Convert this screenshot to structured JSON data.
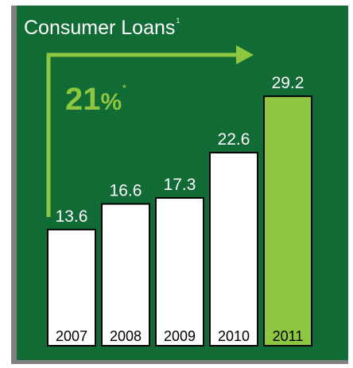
{
  "chart_data": {
    "type": "bar",
    "title": "Consumer Loans",
    "title_footnote": "1",
    "annotation": {
      "value": "21",
      "unit": "%",
      "footnote": "*"
    },
    "categories": [
      "2007",
      "2008",
      "2009",
      "2010",
      "2011"
    ],
    "values": [
      13.6,
      16.6,
      17.3,
      22.6,
      29.2
    ],
    "value_labels": [
      "13.6",
      "16.6",
      "17.3",
      "22.6",
      "29.2"
    ],
    "highlight_index": 4,
    "ylim": [
      0,
      32
    ],
    "grid": false,
    "legend": "none"
  },
  "colors": {
    "background": "#116b34",
    "frame": "#808080",
    "bar_fill": "#ffffff",
    "highlight_fill": "#8dc63f",
    "arrow": "#8dc63f",
    "label_text": "#ffffff",
    "category_text": "#000000"
  }
}
